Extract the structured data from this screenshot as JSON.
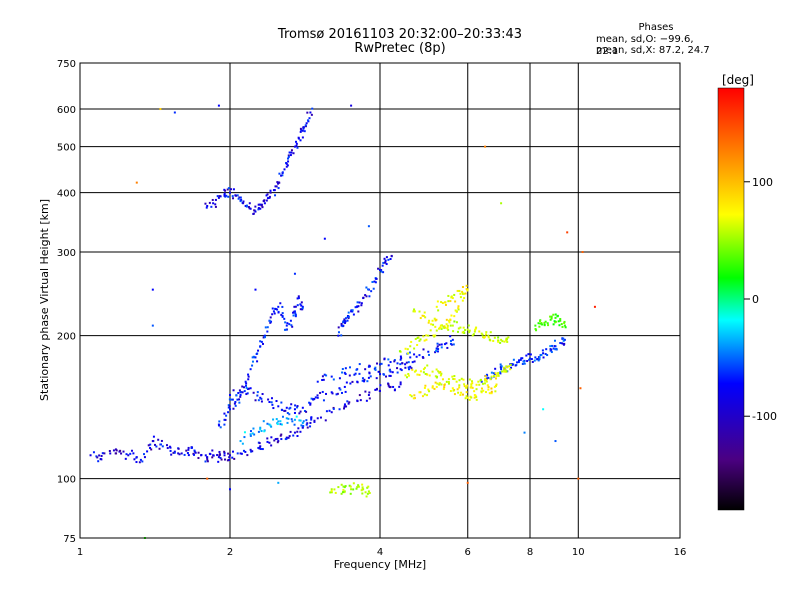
{
  "chart_data": {
    "type": "scatter",
    "title": "Tromsø 20161103 20:32:00–20:33:43",
    "subtitle": "RwPretec (8p)",
    "xlabel": "Frequency [MHz]",
    "ylabel": "Stationary phase Virtual Height [km]",
    "xscale": "log",
    "yscale": "log",
    "xlim": [
      1,
      16
    ],
    "ylim": [
      75,
      750
    ],
    "x_ticks": [
      1,
      2,
      4,
      6,
      8,
      10,
      16
    ],
    "y_ticks": [
      75,
      100,
      200,
      300,
      400,
      500,
      600,
      750
    ],
    "grid": true,
    "phase_info": {
      "heading": "Phases",
      "line_o": "mean, sd,O: −99.6, 22.1",
      "line_x": "mean, sd,X:  87.2, 24.7"
    },
    "colorbar": {
      "label": "[deg]",
      "range": [
        -180,
        180
      ],
      "ticks": [
        100,
        0,
        -100
      ],
      "colors": [
        "#000000",
        "#4b0082",
        "#0000ff",
        "#00ffff",
        "#00ff00",
        "#ffff00",
        "#ff8000",
        "#ff0000"
      ]
    },
    "traces": [
      {
        "phase": -110,
        "points": [
          [
            1.05,
            112
          ],
          [
            1.1,
            110
          ],
          [
            1.15,
            113
          ],
          [
            1.2,
            114
          ],
          [
            1.25,
            112
          ],
          [
            1.3,
            111
          ],
          [
            1.35,
            111
          ],
          [
            1.4,
            120
          ],
          [
            1.45,
            118
          ],
          [
            1.5,
            116
          ],
          [
            1.55,
            114
          ],
          [
            1.6,
            113
          ],
          [
            1.65,
            115
          ],
          [
            1.7,
            114
          ],
          [
            1.75,
            112
          ],
          [
            1.8,
            111
          ],
          [
            1.85,
            112
          ],
          [
            1.9,
            111
          ],
          [
            1.95,
            112
          ],
          [
            2.0,
            112
          ],
          [
            2.1,
            113
          ],
          [
            2.2,
            115
          ],
          [
            2.3,
            117
          ],
          [
            2.4,
            119
          ],
          [
            2.5,
            120
          ],
          [
            2.6,
            122
          ],
          [
            2.7,
            125
          ],
          [
            2.8,
            128
          ],
          [
            2.9,
            131
          ],
          [
            3.0,
            134
          ],
          [
            3.2,
            138
          ],
          [
            3.4,
            142
          ],
          [
            3.6,
            146
          ],
          [
            3.8,
            150
          ],
          [
            4.0,
            153
          ],
          [
            4.2,
            156
          ],
          [
            4.4,
            158
          ]
        ]
      },
      {
        "phase": -100,
        "points": [
          [
            2.0,
            150
          ],
          [
            2.1,
            152
          ],
          [
            2.2,
            155
          ],
          [
            2.3,
            148
          ],
          [
            2.4,
            145
          ],
          [
            2.5,
            142
          ],
          [
            2.6,
            141
          ],
          [
            2.7,
            140
          ],
          [
            2.8,
            141
          ],
          [
            2.9,
            144
          ],
          [
            3.0,
            148
          ],
          [
            3.2,
            152
          ],
          [
            3.4,
            156
          ],
          [
            3.6,
            160
          ],
          [
            3.8,
            163
          ],
          [
            4.0,
            166
          ],
          [
            4.2,
            168
          ],
          [
            4.4,
            170
          ],
          [
            4.6,
            172
          ]
        ]
      },
      {
        "phase": -95,
        "points": [
          [
            3.0,
            160
          ],
          [
            3.2,
            164
          ],
          [
            3.4,
            167
          ],
          [
            3.6,
            170
          ],
          [
            3.8,
            172
          ],
          [
            4.0,
            174
          ],
          [
            4.2,
            176
          ],
          [
            4.4,
            178
          ],
          [
            4.6,
            180
          ],
          [
            4.8,
            182
          ],
          [
            5.0,
            185
          ],
          [
            5.2,
            188
          ],
          [
            5.4,
            192
          ],
          [
            5.6,
            196
          ]
        ]
      },
      {
        "phase": -90,
        "points": [
          [
            6.4,
            160
          ],
          [
            6.6,
            163
          ],
          [
            6.8,
            166
          ],
          [
            7.0,
            170
          ],
          [
            7.2,
            172
          ],
          [
            7.4,
            174
          ],
          [
            7.6,
            176
          ],
          [
            7.8,
            177
          ],
          [
            8.0,
            179
          ],
          [
            8.2,
            180
          ],
          [
            8.4,
            182
          ],
          [
            8.6,
            183
          ],
          [
            8.8,
            186
          ],
          [
            9.0,
            190
          ],
          [
            9.2,
            193
          ],
          [
            9.4,
            196
          ]
        ]
      },
      {
        "phase": -95,
        "points": [
          [
            1.9,
            130
          ],
          [
            1.95,
            133
          ],
          [
            2.0,
            140
          ],
          [
            2.05,
            145
          ],
          [
            2.1,
            150
          ],
          [
            2.15,
            160
          ],
          [
            2.2,
            170
          ],
          [
            2.25,
            180
          ],
          [
            2.3,
            190
          ],
          [
            2.35,
            200
          ],
          [
            2.4,
            215
          ],
          [
            2.45,
            225
          ],
          [
            2.5,
            230
          ],
          [
            2.55,
            220
          ],
          [
            2.6,
            210
          ],
          [
            2.65,
            215
          ],
          [
            2.7,
            225
          ],
          [
            2.75,
            240
          ],
          [
            2.8,
            230
          ]
        ]
      },
      {
        "phase": -100,
        "points": [
          [
            3.3,
            200
          ],
          [
            3.35,
            210
          ],
          [
            3.4,
            215
          ],
          [
            3.45,
            220
          ],
          [
            3.5,
            225
          ],
          [
            3.6,
            230
          ],
          [
            3.7,
            240
          ],
          [
            3.8,
            250
          ],
          [
            3.9,
            260
          ],
          [
            4.0,
            275
          ],
          [
            4.1,
            285
          ],
          [
            4.2,
            290
          ]
        ]
      },
      {
        "phase": -105,
        "points": [
          [
            1.8,
            375
          ],
          [
            1.85,
            380
          ],
          [
            1.9,
            390
          ],
          [
            1.95,
            395
          ],
          [
            2.0,
            400
          ],
          [
            2.05,
            395
          ],
          [
            2.1,
            385
          ],
          [
            2.15,
            375
          ],
          [
            2.2,
            370
          ],
          [
            2.25,
            365
          ],
          [
            2.3,
            370
          ],
          [
            2.35,
            380
          ],
          [
            2.4,
            390
          ],
          [
            2.45,
            405
          ],
          [
            2.5,
            420
          ],
          [
            2.55,
            440
          ],
          [
            2.6,
            460
          ],
          [
            2.65,
            480
          ],
          [
            2.7,
            500
          ],
          [
            2.75,
            520
          ],
          [
            2.8,
            540
          ],
          [
            2.85,
            560
          ],
          [
            2.9,
            590
          ]
        ]
      },
      {
        "phase": 70,
        "points": [
          [
            4.4,
            185
          ],
          [
            4.6,
            190
          ],
          [
            4.8,
            195
          ],
          [
            5.0,
            200
          ],
          [
            5.2,
            205
          ],
          [
            5.4,
            208
          ],
          [
            5.6,
            210
          ],
          [
            5.8,
            208
          ],
          [
            6.0,
            206
          ],
          [
            6.2,
            204
          ],
          [
            6.4,
            202
          ],
          [
            6.6,
            200
          ],
          [
            6.8,
            198
          ],
          [
            7.0,
            196
          ],
          [
            7.2,
            194
          ]
        ]
      },
      {
        "phase": 80,
        "points": [
          [
            4.5,
            165
          ],
          [
            4.7,
            168
          ],
          [
            4.9,
            170
          ],
          [
            5.1,
            168
          ],
          [
            5.3,
            165
          ],
          [
            5.5,
            162
          ],
          [
            5.7,
            160
          ],
          [
            5.9,
            158
          ],
          [
            6.1,
            158
          ],
          [
            6.3,
            160
          ],
          [
            6.5,
            162
          ],
          [
            6.7,
            164
          ],
          [
            6.9,
            166
          ],
          [
            7.1,
            168
          ],
          [
            7.3,
            170
          ]
        ]
      },
      {
        "phase": 90,
        "points": [
          [
            4.6,
            150
          ],
          [
            4.8,
            152
          ],
          [
            5.0,
            154
          ],
          [
            5.2,
            156
          ],
          [
            5.4,
            158
          ],
          [
            5.6,
            155
          ],
          [
            5.8,
            150
          ],
          [
            6.0,
            148
          ],
          [
            6.2,
            150
          ],
          [
            6.4,
            152
          ],
          [
            6.6,
            154
          ],
          [
            6.8,
            156
          ]
        ]
      },
      {
        "phase": 85,
        "points": [
          [
            5.2,
            230
          ],
          [
            5.4,
            235
          ],
          [
            5.6,
            240
          ],
          [
            5.8,
            245
          ],
          [
            6.0,
            250
          ],
          [
            5.9,
            240
          ],
          [
            5.7,
            225
          ],
          [
            5.5,
            215
          ],
          [
            5.3,
            210
          ],
          [
            5.1,
            215
          ],
          [
            4.9,
            220
          ],
          [
            4.7,
            225
          ]
        ]
      },
      {
        "phase": -60,
        "points": [
          [
            2.1,
            120
          ],
          [
            2.2,
            124
          ],
          [
            2.3,
            128
          ],
          [
            2.4,
            130
          ],
          [
            2.5,
            132
          ],
          [
            2.6,
            134
          ],
          [
            2.7,
            133
          ],
          [
            2.8,
            131
          ]
        ]
      },
      {
        "phase": 60,
        "points": [
          [
            3.2,
            95
          ],
          [
            3.3,
            96
          ],
          [
            3.4,
            94
          ],
          [
            3.5,
            95
          ],
          [
            3.6,
            96
          ],
          [
            3.7,
            95
          ],
          [
            3.8,
            94
          ]
        ]
      },
      {
        "phase": 20,
        "points": [
          [
            8.2,
            210
          ],
          [
            8.4,
            212
          ],
          [
            8.6,
            214
          ],
          [
            8.8,
            216
          ],
          [
            9.0,
            218
          ],
          [
            9.2,
            215
          ],
          [
            9.4,
            210
          ]
        ]
      }
    ],
    "outliers": [
      {
        "x": 1.45,
        "y": 600,
        "phase": 110
      },
      {
        "x": 1.55,
        "y": 590,
        "phase": -90
      },
      {
        "x": 1.4,
        "y": 210,
        "phase": -80
      },
      {
        "x": 1.4,
        "y": 250,
        "phase": -100
      },
      {
        "x": 1.3,
        "y": 420,
        "phase": 140
      },
      {
        "x": 1.9,
        "y": 610,
        "phase": -100
      },
      {
        "x": 3.5,
        "y": 610,
        "phase": -110
      },
      {
        "x": 6.5,
        "y": 500,
        "phase": 140
      },
      {
        "x": 7.0,
        "y": 380,
        "phase": 60
      },
      {
        "x": 9.5,
        "y": 330,
        "phase": 160
      },
      {
        "x": 10.2,
        "y": 300,
        "phase": 150
      },
      {
        "x": 10.8,
        "y": 230,
        "phase": 170
      },
      {
        "x": 6.0,
        "y": 98,
        "phase": 150
      },
      {
        "x": 7.8,
        "y": 125,
        "phase": -70
      },
      {
        "x": 8.5,
        "y": 140,
        "phase": -40
      },
      {
        "x": 9.0,
        "y": 120,
        "phase": -80
      },
      {
        "x": 10.0,
        "y": 100,
        "phase": 150
      },
      {
        "x": 10.1,
        "y": 155,
        "phase": 150
      },
      {
        "x": 2.0,
        "y": 95,
        "phase": -100
      },
      {
        "x": 2.5,
        "y": 98,
        "phase": -60
      },
      {
        "x": 1.8,
        "y": 100,
        "phase": 150
      },
      {
        "x": 1.35,
        "y": 75,
        "phase": 10
      },
      {
        "x": 3.1,
        "y": 320,
        "phase": -100
      },
      {
        "x": 3.8,
        "y": 340,
        "phase": -80
      },
      {
        "x": 2.25,
        "y": 250,
        "phase": -100
      },
      {
        "x": 2.7,
        "y": 270,
        "phase": -90
      }
    ]
  }
}
